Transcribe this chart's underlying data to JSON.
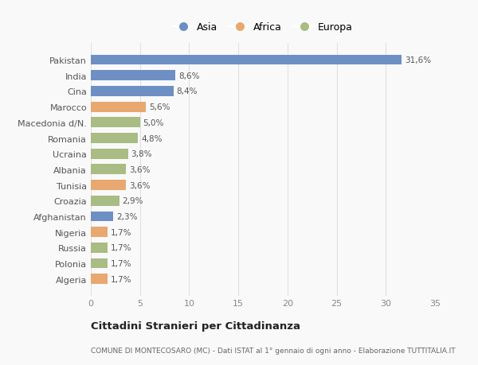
{
  "countries": [
    "Pakistan",
    "India",
    "Cina",
    "Marocco",
    "Macedonia d/N.",
    "Romania",
    "Ucraina",
    "Albania",
    "Tunisia",
    "Croazia",
    "Afghanistan",
    "Nigeria",
    "Russia",
    "Polonia",
    "Algeria"
  ],
  "values": [
    31.6,
    8.6,
    8.4,
    5.6,
    5.0,
    4.8,
    3.8,
    3.6,
    3.6,
    2.9,
    2.3,
    1.7,
    1.7,
    1.7,
    1.7
  ],
  "labels": [
    "31,6%",
    "8,6%",
    "8,4%",
    "5,6%",
    "5,0%",
    "4,8%",
    "3,8%",
    "3,6%",
    "3,6%",
    "2,9%",
    "2,3%",
    "1,7%",
    "1,7%",
    "1,7%",
    "1,7%"
  ],
  "continents": [
    "Asia",
    "Asia",
    "Asia",
    "Africa",
    "Europa",
    "Europa",
    "Europa",
    "Europa",
    "Africa",
    "Europa",
    "Asia",
    "Africa",
    "Europa",
    "Europa",
    "Africa"
  ],
  "continent_colors": {
    "Asia": "#6e8fc4",
    "Africa": "#e8a870",
    "Europa": "#a8bc84"
  },
  "legend_labels": [
    "Asia",
    "Africa",
    "Europa"
  ],
  "title": "Cittadini Stranieri per Cittadinanza",
  "subtitle": "COMUNE DI MONTECOSARO (MC) - Dati ISTAT al 1° gennaio di ogni anno - Elaborazione TUTTITALIA.IT",
  "xlim": [
    0,
    35
  ],
  "xticks": [
    0,
    5,
    10,
    15,
    20,
    25,
    30,
    35
  ],
  "bg_color": "#f9f9f9",
  "grid_color": "#e0e0e0",
  "bar_height": 0.65
}
